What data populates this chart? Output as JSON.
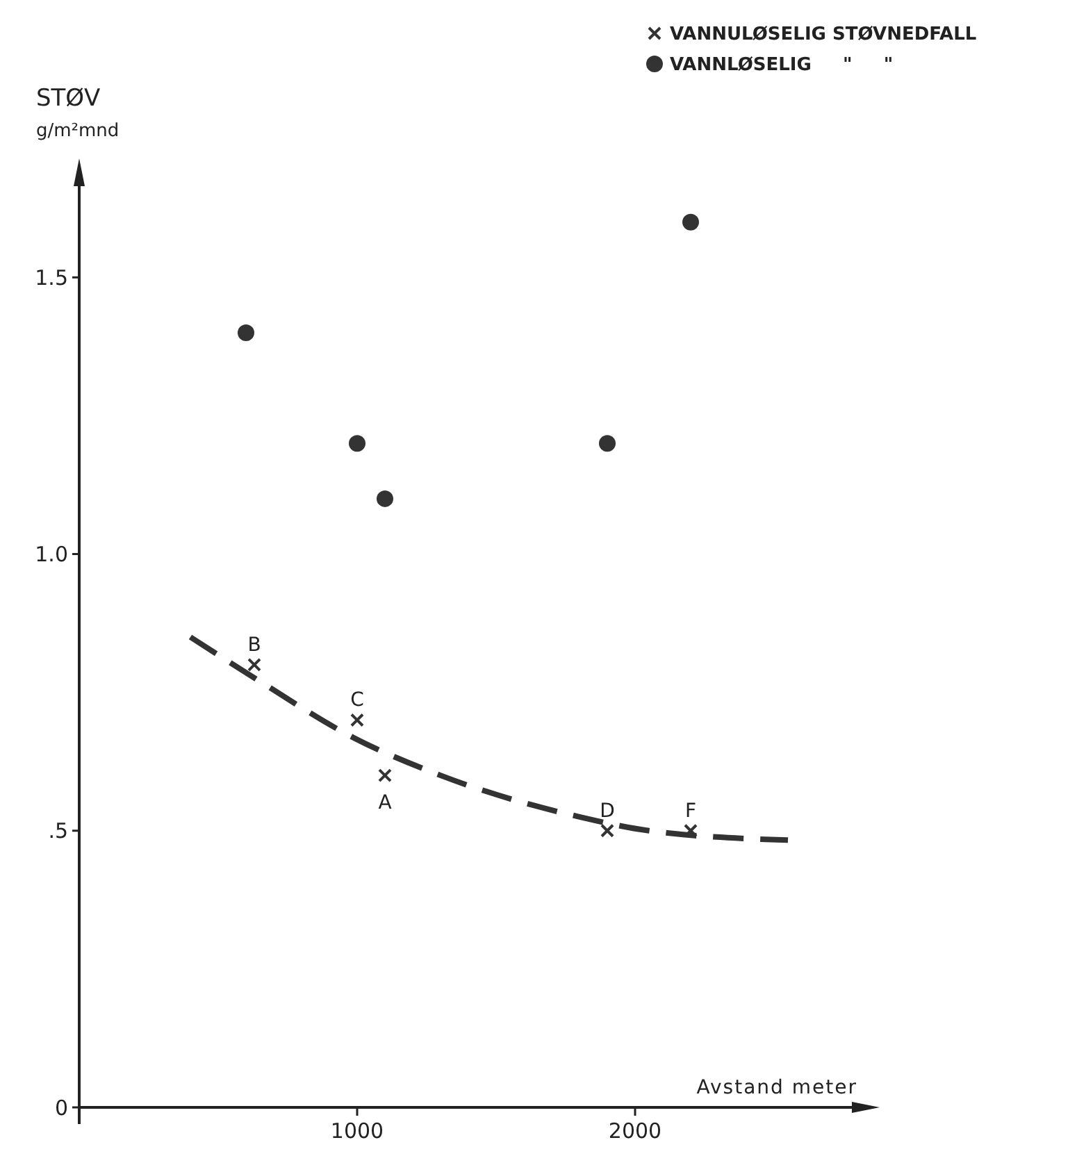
{
  "chart_data": {
    "type": "scatter",
    "xlabel": "Avstand meter",
    "ylabel": "STØV\ng/m²mnd",
    "xlim": [
      0,
      2850
    ],
    "ylim": [
      0,
      1.7
    ],
    "xticks": [
      1000,
      2000
    ],
    "yticks": [
      0,
      {
        "value": 0.5,
        "label": ".5"
      },
      {
        "value": 1,
        "label": "1.0"
      },
      1.5
    ],
    "grid": false,
    "legend": "top right",
    "series": [
      {
        "name": "VANNULØSELIG STØVNEDFALL",
        "color": "#333333",
        "marker": "cross",
        "x": [
          630,
          1000,
          1100,
          1900,
          2200
        ],
        "values": [
          0.8,
          0.7,
          0.6,
          0.5,
          0.5
        ]
      },
      {
        "name": "VANNLØSELIG     \"     \"",
        "color": "#333333",
        "marker": "circle",
        "x": [
          600,
          1000,
          1100,
          1900,
          2200
        ],
        "values": [
          1.4,
          1.2,
          1.1,
          1.2,
          1.6
        ]
      },
      {
        "type": "line",
        "color": "#333333",
        "marker": "none",
        "line_style": "dashed",
        "x": [
          400,
          650,
          980,
          1300,
          1800,
          2050,
          2550
        ],
        "values": [
          0.85,
          0.77,
          0.67,
          0.6,
          0.525,
          0.5,
          0.483
        ]
      }
    ],
    "annotations": [
      {
        "text": "B",
        "x": 630,
        "y": 0.8
      },
      {
        "text": "C",
        "x": 1000,
        "y": 0.7
      },
      {
        "text": "A",
        "x": 1100,
        "y": 0.6
      },
      {
        "text": "D",
        "x": 1900,
        "y": 0.5
      },
      {
        "text": "F",
        "x": 2200,
        "y": 0.5
      }
    ]
  }
}
